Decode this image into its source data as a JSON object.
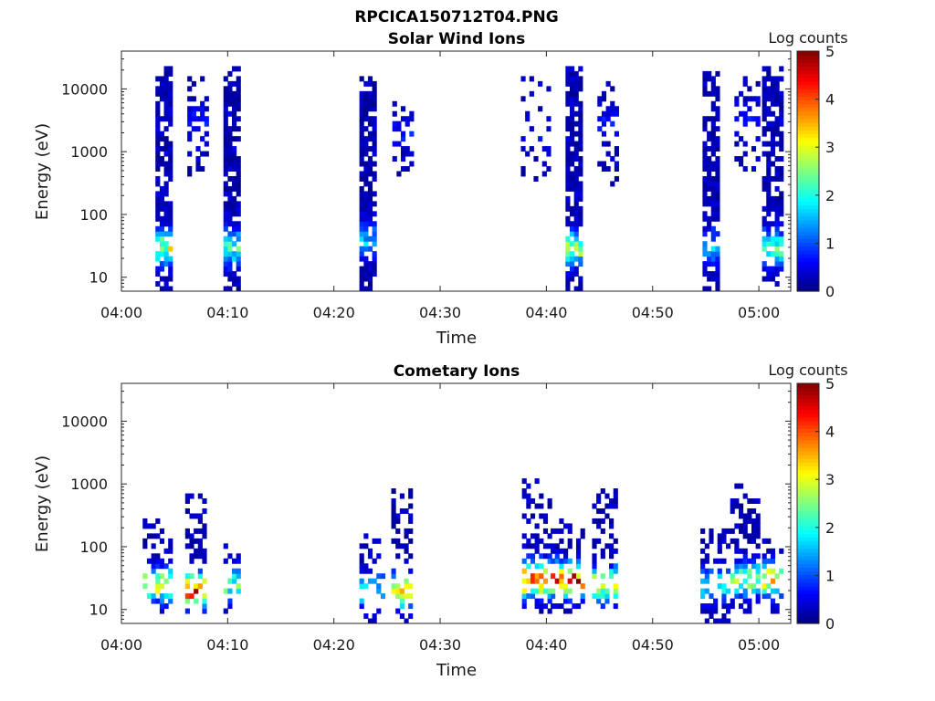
{
  "figure_title": "RPCICA150712T04.PNG",
  "chart_data": [
    {
      "type": "heatmap",
      "title": "Solar Wind Ions",
      "xlabel": "Time",
      "ylabel": "Energy (eV)",
      "x_axis": {
        "type": "time",
        "range": [
          "04:00",
          "05:03"
        ],
        "ticks": [
          "04:00",
          "04:10",
          "04:20",
          "04:30",
          "04:40",
          "04:50",
          "05:00"
        ]
      },
      "y_axis": {
        "type": "log",
        "range": [
          6,
          40000
        ],
        "ticks": [
          10,
          100,
          1000,
          10000
        ],
        "tick_labels": [
          "10",
          "100",
          "1000",
          "10000"
        ]
      },
      "colorbar": {
        "label": "Log counts",
        "range": [
          0,
          5
        ],
        "ticks": [
          "0",
          "1",
          "2",
          "3",
          "4",
          "5"
        ],
        "colormap": "jet"
      },
      "bursts": [
        {
          "t_start": 3.2,
          "t_end": 4.8,
          "e_low": 6,
          "e_high": 25000,
          "density": 0.75,
          "core_e": 30,
          "core_level": 2.4
        },
        {
          "t_start": 6.2,
          "t_end": 8.0,
          "e_low": 400,
          "e_high": 20000,
          "density": 0.35,
          "core_e": 3000,
          "core_level": 0.4
        },
        {
          "t_start": 9.6,
          "t_end": 11.2,
          "e_low": 6,
          "e_high": 25000,
          "density": 0.75,
          "core_e": 30,
          "core_level": 1.8
        },
        {
          "t_start": 22.4,
          "t_end": 23.9,
          "e_low": 6,
          "e_high": 16000,
          "density": 0.75,
          "core_e": 40,
          "core_level": 1.2
        },
        {
          "t_start": 25.5,
          "t_end": 27.1,
          "e_low": 300,
          "e_high": 8000,
          "density": 0.35,
          "core_e": 2000,
          "core_level": 0.4
        },
        {
          "t_start": 37.6,
          "t_end": 40.2,
          "e_low": 300,
          "e_high": 15000,
          "density": 0.2,
          "core_e": 2000,
          "core_level": 0.3
        },
        {
          "t_start": 41.8,
          "t_end": 43.3,
          "e_low": 6,
          "e_high": 25000,
          "density": 0.75,
          "core_e": 30,
          "core_level": 2.2
        },
        {
          "t_start": 44.8,
          "t_end": 46.6,
          "e_low": 300,
          "e_high": 15000,
          "density": 0.35,
          "core_e": 3000,
          "core_level": 0.4
        },
        {
          "t_start": 54.7,
          "t_end": 56.3,
          "e_low": 6,
          "e_high": 20000,
          "density": 0.75,
          "core_e": 30,
          "core_level": 1.2
        },
        {
          "t_start": 57.7,
          "t_end": 59.8,
          "e_low": 400,
          "e_high": 15000,
          "density": 0.3,
          "core_e": 3000,
          "core_level": 0.4
        },
        {
          "t_start": 60.3,
          "t_end": 62.2,
          "e_low": 6,
          "e_high": 30000,
          "density": 0.7,
          "core_e": 30,
          "core_level": 2.0
        }
      ]
    },
    {
      "type": "heatmap",
      "title": "Cometary Ions",
      "xlabel": "Time",
      "ylabel": "Energy (eV)",
      "x_axis": {
        "type": "time",
        "range": [
          "04:00",
          "05:03"
        ],
        "ticks": [
          "04:00",
          "04:10",
          "04:20",
          "04:30",
          "04:40",
          "04:50",
          "05:00"
        ]
      },
      "y_axis": {
        "type": "log",
        "range": [
          6,
          40000
        ],
        "ticks": [
          10,
          100,
          1000,
          10000
        ],
        "tick_labels": [
          "10",
          "100",
          "1000",
          "10000"
        ]
      },
      "colorbar": {
        "label": "Log counts",
        "range": [
          0,
          5
        ],
        "ticks": [
          "0",
          "1",
          "2",
          "3",
          "4",
          "5"
        ],
        "colormap": "jet"
      },
      "bursts": [
        {
          "t_start": 2.0,
          "t_end": 4.8,
          "e_low": 8,
          "e_high": 300,
          "density": 0.45,
          "core_e": 25,
          "core_level": 2.6
        },
        {
          "t_start": 6.0,
          "t_end": 8.0,
          "e_low": 8,
          "e_high": 900,
          "density": 0.45,
          "core_e": 20,
          "core_level": 3.8
        },
        {
          "t_start": 9.6,
          "t_end": 11.2,
          "e_low": 8,
          "e_high": 120,
          "density": 0.45,
          "core_e": 25,
          "core_level": 2.0
        },
        {
          "t_start": 22.4,
          "t_end": 24.5,
          "e_low": 6,
          "e_high": 200,
          "density": 0.35,
          "core_e": 20,
          "core_level": 1.6
        },
        {
          "t_start": 25.4,
          "t_end": 27.2,
          "e_low": 6,
          "e_high": 1000,
          "density": 0.45,
          "core_e": 20,
          "core_level": 2.8
        },
        {
          "t_start": 37.7,
          "t_end": 40.2,
          "e_low": 8,
          "e_high": 1200,
          "density": 0.45,
          "core_e": 30,
          "core_level": 3.8
        },
        {
          "t_start": 40.4,
          "t_end": 43.4,
          "e_low": 8,
          "e_high": 300,
          "density": 0.45,
          "core_e": 30,
          "core_level": 3.8
        },
        {
          "t_start": 44.3,
          "t_end": 46.6,
          "e_low": 8,
          "e_high": 800,
          "density": 0.45,
          "core_e": 25,
          "core_level": 2.8
        },
        {
          "t_start": 54.5,
          "t_end": 57.0,
          "e_low": 6,
          "e_high": 200,
          "density": 0.4,
          "core_e": 25,
          "core_level": 1.6
        },
        {
          "t_start": 57.3,
          "t_end": 59.8,
          "e_low": 8,
          "e_high": 1000,
          "density": 0.45,
          "core_e": 30,
          "core_level": 2.2
        },
        {
          "t_start": 60.3,
          "t_end": 62.2,
          "e_low": 8,
          "e_high": 130,
          "density": 0.45,
          "core_e": 30,
          "core_level": 3.0
        }
      ]
    }
  ]
}
